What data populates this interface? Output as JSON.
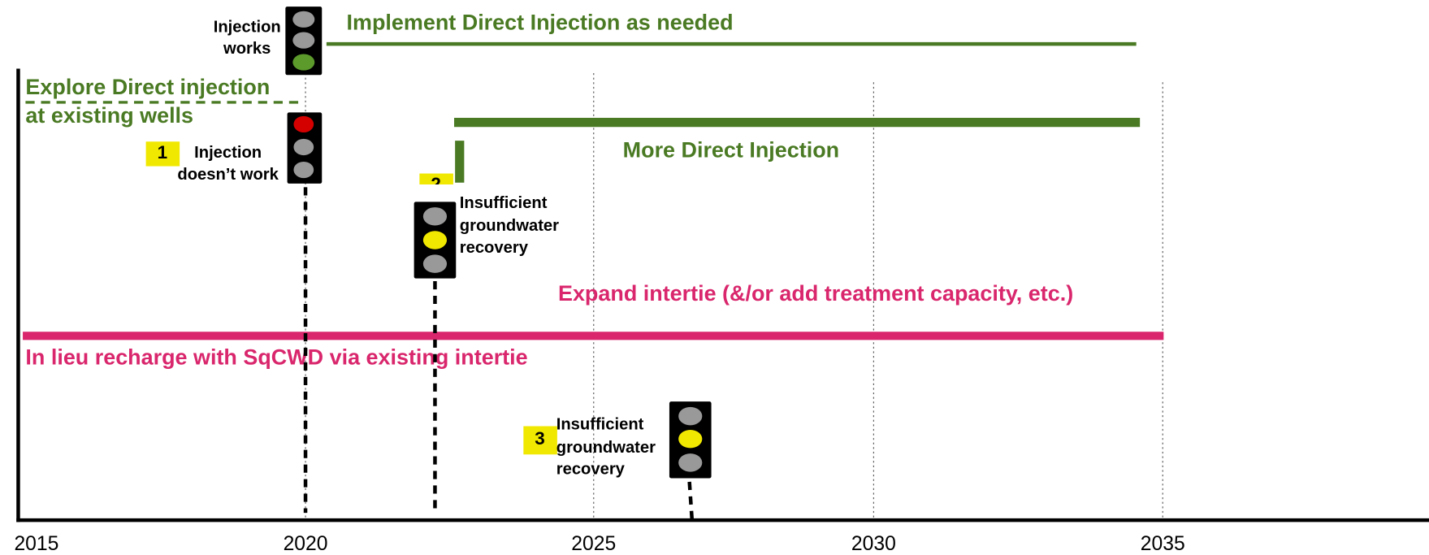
{
  "axis": {
    "ticks": [
      "2015",
      "2020",
      "2025",
      "2030",
      "2035"
    ]
  },
  "tracks": {
    "implement": "Implement Direct Injection as needed",
    "explore": [
      "Explore Direct injection",
      "at existing wells"
    ],
    "more": "More Direct Injection",
    "expand": "Expand intertie (&/or add treatment capacity, etc.)",
    "in_lieu": "In lieu recharge with SqCWD via existing intertie"
  },
  "decisions": [
    {
      "label": [
        "Injection",
        "works"
      ]
    },
    {
      "number": "1",
      "label": [
        "Injection",
        "doesn’t work"
      ]
    },
    {
      "number": "2",
      "label": [
        "Insufficient",
        "groundwater",
        "recovery"
      ]
    },
    {
      "number": "3",
      "label": [
        "Insufficient",
        "groundwater",
        "recovery"
      ]
    }
  ]
}
